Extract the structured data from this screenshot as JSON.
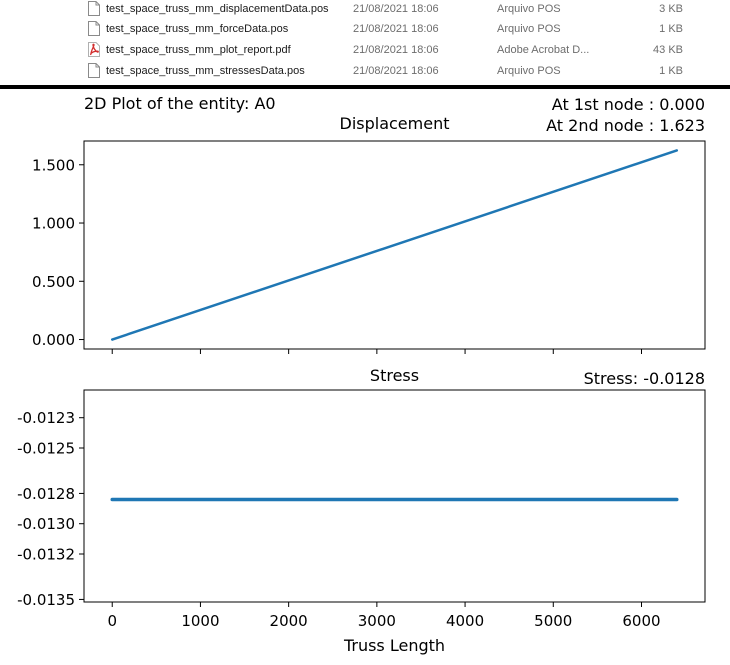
{
  "files": [
    {
      "name": "test_space_truss_mm_displacementData.pos",
      "date": "21/08/2021 18:06",
      "type": "Arquivo POS",
      "size": "3 KB",
      "icon": "document-icon"
    },
    {
      "name": "test_space_truss_mm_forceData.pos",
      "date": "21/08/2021 18:06",
      "type": "Arquivo POS",
      "size": "1 KB",
      "icon": "document-icon"
    },
    {
      "name": "test_space_truss_mm_plot_report.pdf",
      "date": "21/08/2021 18:06",
      "type": "Adobe Acrobat D...",
      "size": "43 KB",
      "icon": "pdf-icon"
    },
    {
      "name": "test_space_truss_mm_stressesData.pos",
      "date": "21/08/2021 18:06",
      "type": "Arquivo POS",
      "size": "1 KB",
      "icon": "document-icon"
    }
  ],
  "figure": {
    "suptitle": "2D Plot of the entity: A0",
    "node1_text": "At 1st node : 0.000",
    "node2_text": "At 2nd node : 1.623",
    "stress_text": "Stress: -0.0128"
  },
  "colors": {
    "line": "#1f77b4",
    "pdf_icon": "#d32f2f"
  },
  "chart_data": [
    {
      "type": "line",
      "title": "Displacement",
      "xlabel": "",
      "ylabel": "",
      "x": [
        0,
        6400
      ],
      "y": [
        0.0,
        1.623
      ],
      "xlim": [
        -320,
        6720
      ],
      "ylim": [
        -0.0812,
        1.704
      ],
      "yticks": [
        0.0,
        0.5,
        1.0,
        1.5
      ],
      "ytick_labels": [
        "0.000",
        "0.500",
        "1.000",
        "1.500"
      ],
      "xticks": [
        0,
        1000,
        2000,
        3000,
        4000,
        5000,
        6000
      ],
      "xtick_labels": [],
      "grid": false,
      "color": "#1f77b4"
    },
    {
      "type": "line",
      "title": "Stress",
      "xlabel": "Truss Length",
      "ylabel": "",
      "x": [
        0,
        6400
      ],
      "y": [
        -0.01284,
        -0.01284
      ],
      "xlim": [
        -320,
        6720
      ],
      "ylim": [
        -0.013517,
        -0.012117
      ],
      "yticks": [
        -0.0123,
        -0.0125,
        -0.0128,
        -0.013,
        -0.0132,
        -0.0135
      ],
      "ytick_labels": [
        "-0.0123",
        "-0.0125",
        "-0.0128",
        "-0.0130",
        "-0.0132",
        "-0.0135"
      ],
      "xticks": [
        0,
        1000,
        2000,
        3000,
        4000,
        5000,
        6000
      ],
      "xtick_labels": [
        "0",
        "1000",
        "2000",
        "3000",
        "4000",
        "5000",
        "6000"
      ],
      "grid": false,
      "color": "#1f77b4"
    }
  ]
}
